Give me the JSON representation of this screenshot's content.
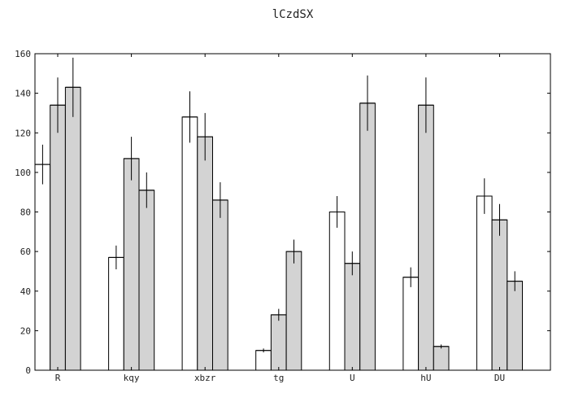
{
  "chart_data": {
    "type": "bar",
    "title": "lCzdSX",
    "xlabel": "",
    "ylabel": "",
    "categories": [
      "R",
      "kqy",
      "xbzr",
      "tg",
      "U",
      "hU",
      "DU"
    ],
    "ylim": [
      0,
      160
    ],
    "yticks": [
      0,
      20,
      40,
      60,
      80,
      100,
      120,
      140,
      160
    ],
    "grid": false,
    "series": [
      {
        "color": "#ffffff",
        "values": [
          104,
          57,
          128,
          10,
          80,
          47,
          88
        ],
        "errors": [
          10,
          6,
          13,
          1,
          8,
          5,
          9
        ]
      },
      {
        "color": "#d3d3d3",
        "values": [
          134,
          107,
          118,
          28,
          54,
          134,
          76
        ],
        "errors": [
          14,
          11,
          12,
          3,
          6,
          14,
          8
        ]
      },
      {
        "color": "#d3d3d3",
        "values": [
          143,
          91,
          86,
          60,
          135,
          12,
          45
        ],
        "errors": [
          15,
          9,
          9,
          6,
          14,
          1,
          5
        ]
      }
    ]
  }
}
